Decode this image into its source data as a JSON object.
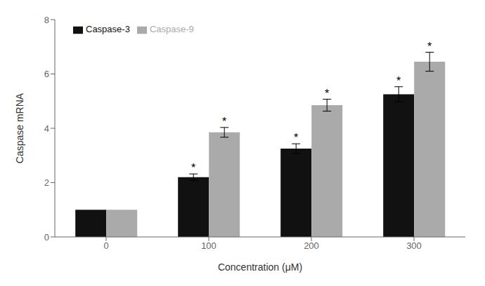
{
  "chart_data": {
    "type": "bar",
    "xlabel": "Concentration (μM)",
    "ylabel": "Caspase mRNA",
    "categories": [
      "0",
      "100",
      "200",
      "300"
    ],
    "series": [
      {
        "name": "Caspase-3",
        "color": "#111111",
        "values": [
          1.0,
          2.2,
          3.25,
          5.25
        ],
        "errors": [
          0.0,
          0.12,
          0.18,
          0.28
        ]
      },
      {
        "name": "Caspase-9",
        "color": "#aaaaaa",
        "values": [
          1.0,
          3.85,
          4.85,
          6.45
        ],
        "errors": [
          0.0,
          0.18,
          0.22,
          0.35
        ]
      }
    ],
    "ylim": [
      0,
      8
    ],
    "yticks": [
      0,
      2,
      4,
      6,
      8
    ],
    "grid": false,
    "legend": "upper left",
    "annotations": [
      {
        "text": "*",
        "series": "Caspase-3",
        "category": "100"
      },
      {
        "text": "*",
        "series": "Caspase-3",
        "category": "200"
      },
      {
        "text": "*",
        "series": "Caspase-3",
        "category": "300"
      },
      {
        "text": "*",
        "series": "Caspase-9",
        "category": "100"
      },
      {
        "text": "*",
        "series": "Caspase-9",
        "category": "200"
      },
      {
        "text": "*",
        "series": "Caspase-9",
        "category": "300"
      }
    ]
  }
}
